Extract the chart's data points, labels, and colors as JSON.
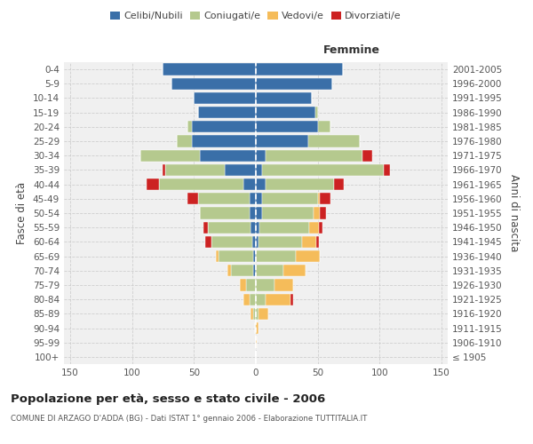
{
  "age_groups": [
    "100+",
    "95-99",
    "90-94",
    "85-89",
    "80-84",
    "75-79",
    "70-74",
    "65-69",
    "60-64",
    "55-59",
    "50-54",
    "45-49",
    "40-44",
    "35-39",
    "30-34",
    "25-29",
    "20-24",
    "15-19",
    "10-14",
    "5-9",
    "0-4"
  ],
  "birth_years": [
    "≤ 1905",
    "1906-1910",
    "1911-1915",
    "1916-1920",
    "1921-1925",
    "1926-1930",
    "1931-1935",
    "1936-1940",
    "1941-1945",
    "1946-1950",
    "1951-1955",
    "1956-1960",
    "1961-1965",
    "1966-1970",
    "1971-1975",
    "1976-1980",
    "1981-1985",
    "1986-1990",
    "1991-1995",
    "1996-2000",
    "2001-2005"
  ],
  "males": {
    "celibi": [
      0,
      0,
      0,
      0,
      0,
      0,
      2,
      2,
      3,
      4,
      5,
      5,
      10,
      25,
      45,
      52,
      52,
      47,
      50,
      68,
      75
    ],
    "coniugati": [
      0,
      0,
      1,
      2,
      5,
      8,
      18,
      28,
      33,
      35,
      40,
      42,
      68,
      48,
      48,
      12,
      3,
      0,
      0,
      0,
      0
    ],
    "vedovi": [
      0,
      0,
      0,
      2,
      5,
      5,
      3,
      2,
      0,
      0,
      0,
      0,
      0,
      0,
      0,
      0,
      0,
      0,
      0,
      0,
      0
    ],
    "divorziati": [
      0,
      0,
      0,
      0,
      0,
      0,
      0,
      0,
      5,
      3,
      0,
      8,
      10,
      2,
      0,
      0,
      0,
      0,
      0,
      0,
      0
    ]
  },
  "females": {
    "nubili": [
      0,
      0,
      0,
      0,
      0,
      0,
      0,
      0,
      2,
      3,
      5,
      5,
      8,
      5,
      8,
      42,
      50,
      48,
      45,
      62,
      70
    ],
    "coniugate": [
      0,
      0,
      0,
      2,
      8,
      15,
      22,
      32,
      35,
      40,
      42,
      45,
      55,
      98,
      78,
      42,
      10,
      2,
      0,
      0,
      0
    ],
    "vedove": [
      0,
      1,
      2,
      8,
      20,
      15,
      18,
      20,
      12,
      8,
      5,
      2,
      0,
      0,
      0,
      0,
      0,
      0,
      0,
      0,
      0
    ],
    "divorziate": [
      0,
      0,
      0,
      0,
      2,
      0,
      0,
      0,
      2,
      3,
      5,
      8,
      8,
      5,
      8,
      0,
      0,
      0,
      0,
      0,
      0
    ]
  },
  "colors": {
    "celibi_nubili": "#3a6fa8",
    "coniugati": "#b5c98e",
    "vedovi": "#f5bc5a",
    "divorziati": "#cc2222"
  },
  "xlim": 155,
  "title": "Popolazione per età, sesso e stato civile - 2006",
  "subtitle": "COMUNE DI ARZAGO D'ADDA (BG) - Dati ISTAT 1° gennaio 2006 - Elaborazione TUTTITALIA.IT",
  "ylabel_left": "Fasce di età",
  "ylabel_right": "Anni di nascita",
  "xlabel_femmine": "Femmine",
  "legend_labels": [
    "Celibi/Nubili",
    "Coniugati/e",
    "Vedovi/e",
    "Divorziati/e"
  ],
  "background_color": "#ffffff",
  "plot_bg": "#f0f0f0",
  "grid_color": "#cccccc"
}
